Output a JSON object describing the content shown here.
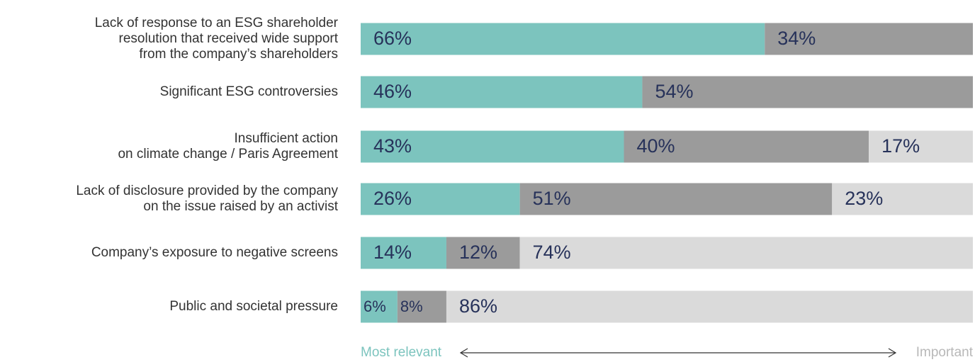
{
  "chart_data": {
    "type": "stacked-bar-horizontal",
    "categories": [
      [
        "Lack of response to an ESG shareholder",
        "resolution that received wide support",
        "from the company’s shareholders"
      ],
      [
        "Significant ESG controversies"
      ],
      [
        "Insufficient action",
        "on climate change / Paris Agreement"
      ],
      [
        "Lack of disclosure provided by the company",
        "on the issue raised by an activist"
      ],
      [
        "Company’s exposure to negative screens"
      ],
      [
        "Public and societal pressure"
      ]
    ],
    "series": [
      {
        "color": "#7cc4be",
        "values": [
          66,
          46,
          43,
          26,
          14,
          6
        ],
        "value_labels": [
          "66%",
          "46%",
          "43%",
          "26%",
          "14%",
          "6%"
        ]
      },
      {
        "color": "#9b9b9b",
        "values": [
          34,
          54,
          40,
          51,
          12,
          8
        ],
        "value_labels": [
          "34%",
          "54%",
          "40%",
          "51%",
          "12%",
          "8%"
        ]
      },
      {
        "color": "#dadada",
        "values": [
          null,
          null,
          17,
          23,
          74,
          86
        ],
        "value_labels": [
          null,
          null,
          "17%",
          "23%",
          "74%",
          "86%"
        ]
      }
    ],
    "xlim": [
      0,
      100
    ],
    "annotations": {
      "left": "Most relevant",
      "right": "Important"
    }
  }
}
